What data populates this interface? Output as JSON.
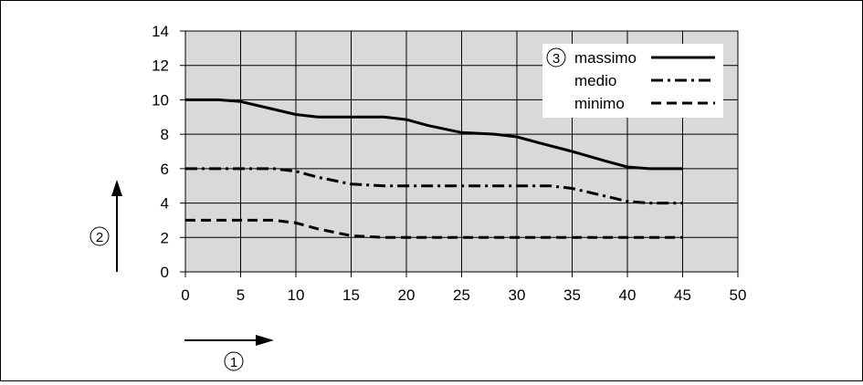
{
  "chart_data": {
    "type": "line",
    "title": "",
    "xlabel": "1",
    "ylabel": "2",
    "xlim": [
      0,
      50
    ],
    "ylim": [
      0,
      14
    ],
    "xticks": [
      0,
      5,
      10,
      15,
      20,
      25,
      30,
      35,
      40,
      45,
      50
    ],
    "yticks": [
      0,
      2,
      4,
      6,
      8,
      10,
      12,
      14
    ],
    "grid": true,
    "legend_position": "top-right",
    "legend_marker": "3",
    "plot_background": "#d9d9d9",
    "line_color": "#000000",
    "series": [
      {
        "name": "massimo",
        "style": "solid",
        "x": [
          0,
          3,
          5,
          7,
          10,
          12,
          15,
          18,
          20,
          22,
          25,
          28,
          30,
          32,
          35,
          38,
          40,
          42,
          45
        ],
        "y": [
          10,
          10,
          9.9,
          9.6,
          9.15,
          9.0,
          9.0,
          9.0,
          8.85,
          8.5,
          8.1,
          8.0,
          7.85,
          7.5,
          7.0,
          6.45,
          6.1,
          6.0,
          6.0
        ]
      },
      {
        "name": "medio",
        "style": "dashdot",
        "x": [
          0,
          5,
          8,
          10,
          12,
          15,
          18,
          20,
          25,
          30,
          33,
          35,
          38,
          40,
          42,
          45
        ],
        "y": [
          6,
          6,
          6,
          5.85,
          5.5,
          5.1,
          5.0,
          5.0,
          5.0,
          5.0,
          5.0,
          4.85,
          4.4,
          4.1,
          4.0,
          4.0
        ]
      },
      {
        "name": "minimo",
        "style": "dashed",
        "x": [
          0,
          5,
          8,
          10,
          12,
          15,
          18,
          20,
          25,
          30,
          35,
          40,
          45
        ],
        "y": [
          3,
          3,
          3,
          2.85,
          2.5,
          2.1,
          2.0,
          2.0,
          2.0,
          2.0,
          2.0,
          2.0,
          2.0
        ]
      }
    ]
  }
}
